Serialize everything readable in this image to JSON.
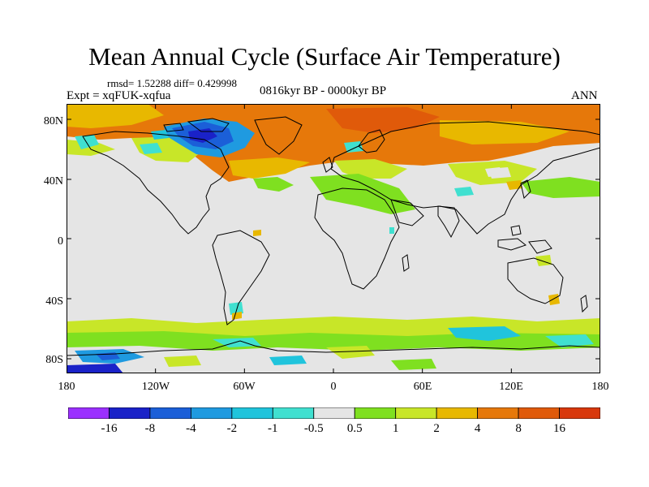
{
  "title": "Mean Annual Cycle (Surface Air Temperature)",
  "stats": "rmsd= 1.52288  diff= 0.429998",
  "experiment": "Expt = xqFUK-xqfua",
  "period": "0816kyr BP - 0000kyr BP",
  "season": "ANN",
  "y_ticks": [
    "80N",
    "40N",
    "0",
    "40S",
    "80S"
  ],
  "x_ticks": [
    "180",
    "120W",
    "60W",
    "0",
    "60E",
    "120E",
    "180"
  ],
  "colorbar": {
    "colors": [
      "#9b30ff",
      "#1a22c8",
      "#1b5fd8",
      "#1f9ae0",
      "#20c4dc",
      "#40e0d0",
      "#e5e5e5",
      "#7fe020",
      "#c8e628",
      "#e8b800",
      "#e6780a",
      "#e05a0a",
      "#d8380c"
    ],
    "labels": [
      "-16",
      "-8",
      "-4",
      "-2",
      "-1",
      "-0.5",
      "0.5",
      "1",
      "2",
      "4",
      "8",
      "16"
    ]
  },
  "colors": {
    "neutral": "#e5e5e5",
    "coast": "#000000"
  }
}
